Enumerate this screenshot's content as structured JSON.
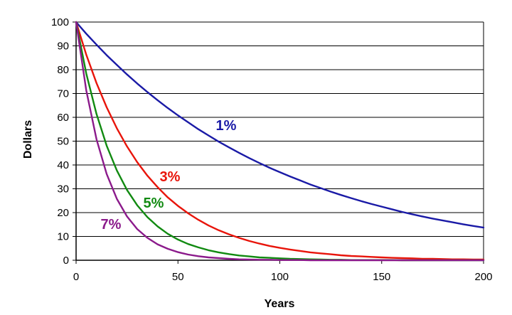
{
  "chart_data": {
    "type": "line",
    "title": "",
    "xlabel": "Years",
    "ylabel": "Dollars",
    "xlim": [
      0,
      200
    ],
    "ylim": [
      0,
      100
    ],
    "x_ticks": [
      0,
      50,
      100,
      150,
      200
    ],
    "y_ticks": [
      0,
      10,
      20,
      30,
      40,
      50,
      60,
      70,
      80,
      90,
      100
    ],
    "grid": "horizontal",
    "legend": "none (series labeled inline)",
    "x": [
      0,
      5,
      10,
      15,
      20,
      25,
      30,
      35,
      40,
      45,
      50,
      55,
      60,
      65,
      70,
      75,
      80,
      85,
      90,
      95,
      100,
      105,
      110,
      115,
      120,
      125,
      130,
      135,
      140,
      145,
      150,
      155,
      160,
      165,
      170,
      175,
      180,
      185,
      190,
      195,
      200
    ],
    "series": [
      {
        "name": "1%",
        "color": "#1a1aa6",
        "values": [
          100,
          95.1,
          90.5,
          86.1,
          82.0,
          78.0,
          74.2,
          70.6,
          67.2,
          63.9,
          60.8,
          57.9,
          55.0,
          52.4,
          49.8,
          47.4,
          45.1,
          42.9,
          40.8,
          38.8,
          37.0,
          35.2,
          33.5,
          31.8,
          30.3,
          28.8,
          27.4,
          26.1,
          24.8,
          23.6,
          22.5,
          21.4,
          20.3,
          19.3,
          18.4,
          17.5,
          16.7,
          15.9,
          15.1,
          14.4,
          13.7
        ]
      },
      {
        "name": "3%",
        "color": "#e8140a",
        "values": [
          100,
          86.3,
          74.4,
          64.2,
          55.4,
          47.8,
          41.2,
          35.5,
          30.7,
          26.4,
          22.8,
          19.7,
          17.0,
          14.6,
          12.6,
          10.9,
          9.4,
          8.1,
          7.0,
          6.0,
          5.2,
          4.5,
          3.9,
          3.3,
          2.9,
          2.5,
          2.1,
          1.8,
          1.6,
          1.4,
          1.2,
          1.0,
          0.9,
          0.8,
          0.6,
          0.6,
          0.5,
          0.4,
          0.4,
          0.3,
          0.3
        ]
      },
      {
        "name": "5%",
        "color": "#118a11",
        "values": [
          100,
          78.4,
          61.4,
          48.1,
          37.7,
          29.5,
          23.1,
          18.1,
          14.2,
          11.1,
          8.7,
          6.8,
          5.4,
          4.2,
          3.3,
          2.6,
          2.0,
          1.6,
          1.2,
          1.0,
          0.8,
          0.6,
          0.5,
          0.4,
          0.3,
          0.2,
          0.2,
          0.1,
          0.1,
          0.1,
          0.1,
          0.1,
          0.0,
          0.0,
          0.0,
          0.0,
          0.0,
          0.0,
          0.0,
          0.0,
          0.0
        ]
      },
      {
        "name": "7%",
        "color": "#8b1a8b",
        "values": [
          100,
          71.3,
          50.8,
          36.2,
          25.8,
          18.4,
          13.1,
          9.4,
          6.7,
          4.8,
          3.4,
          2.4,
          1.7,
          1.2,
          0.9,
          0.6,
          0.4,
          0.3,
          0.2,
          0.2,
          0.1,
          0.1,
          0.1,
          0.0,
          0.0,
          0.0,
          0.0,
          0.0,
          0.0,
          0.0,
          0.0,
          0.0,
          0.0,
          0.0,
          0.0,
          0.0,
          0.0,
          0.0,
          0.0,
          0.0,
          0.0
        ]
      }
    ]
  }
}
